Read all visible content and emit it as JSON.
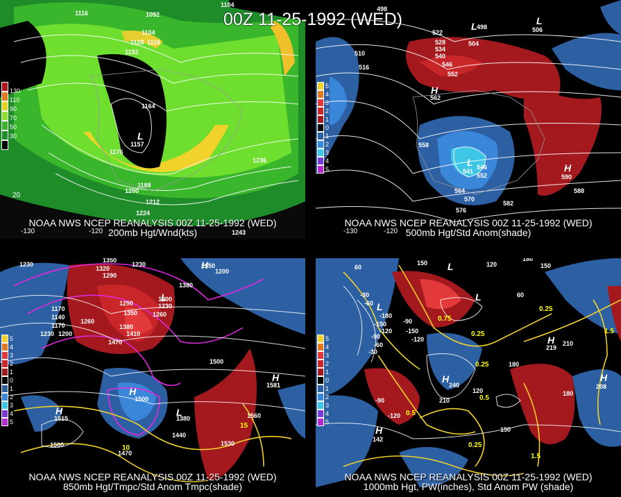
{
  "main_title": "00Z 11-25-1992 (WED)",
  "panels": [
    {
      "caption_line1": "NOAA NWS NCEP REANALYSIS 00Z 11-25-1992 (WED)",
      "caption_line2": "200mb Hgt/Wnd(kts)",
      "lon_labels": [
        "-130",
        "-120"
      ],
      "lat_labels": [
        "20"
      ],
      "legend": [
        "130",
        "110",
        "90",
        "70",
        "50",
        "30"
      ],
      "contour_labels": [
        "1116",
        "1092",
        "1104",
        "1104",
        "1128",
        "1116",
        "1152",
        "1164",
        "1157",
        "1176",
        "1188",
        "1200",
        "1212",
        "1224",
        "1236",
        "1243"
      ],
      "pressure_centers": [
        "L"
      ]
    },
    {
      "caption_line1": "NOAA NWS NCEP REANALYSIS 00Z 11-25-1992 (WED)",
      "caption_line2": "500mb Hgt/Std Anom(shade)",
      "lon_labels": [
        "-130",
        "-120"
      ],
      "lat_labels": [],
      "legend": [
        "5",
        "4",
        "3",
        "2",
        "1",
        "0",
        "1",
        "2",
        "3",
        "4",
        "5"
      ],
      "contour_labels": [
        "498",
        "510",
        "516",
        "522",
        "528",
        "534",
        "540",
        "546",
        "552",
        "504",
        "498",
        "506",
        "562",
        "558",
        "546",
        "552",
        "564",
        "570",
        "576",
        "582",
        "588",
        "590",
        "541"
      ],
      "pressure_centers": [
        "L",
        "L",
        "H",
        "L",
        "H"
      ]
    },
    {
      "caption_line1": "NOAA NWS NCEP REANALYSIS 00Z 11-25-1992 (WED)",
      "caption_line2": "850mb Hgt/Tmpc/Std Anom Tmpc(shade)",
      "lon_labels": [],
      "lat_labels": [],
      "legend": [
        "5",
        "4",
        "3",
        "2",
        "1",
        "0",
        "1",
        "2",
        "3",
        "4",
        "5"
      ],
      "contour_labels": [
        "1350",
        "1230",
        "1320",
        "1290",
        "1230",
        "1350",
        "1200",
        "1170",
        "1140",
        "1170",
        "1230",
        "1200",
        "1260",
        "1290",
        "1350",
        "1380",
        "1410",
        "1470",
        "1200",
        "1230",
        "1260",
        "1380",
        "1500",
        "1500",
        "1560",
        "1530",
        "1470",
        "1500",
        "1440",
        "1380",
        "1515",
        "1581",
        "15",
        "10"
      ],
      "pressure_centers": [
        "H",
        "H",
        "H",
        "H",
        "L",
        "L"
      ]
    },
    {
      "caption_line1": "NOAA NWS NCEP REANALYSIS 00Z 11-25-1992 (WED)",
      "caption_line2": "1000mb Hgt, PW(inches), Std Anom PW (shade)",
      "lon_labels": [],
      "lat_labels": [],
      "legend": [
        "5",
        "4",
        "3",
        "2",
        "1",
        "0",
        "1",
        "2",
        "3",
        "4",
        "5"
      ],
      "contour_labels": [
        "60",
        "150",
        "120",
        "180",
        "150",
        "-30",
        "-60",
        "-90",
        "-120",
        "-150",
        "-180",
        "-150",
        "-120",
        "-90",
        "-60",
        "-30",
        "0.75",
        "0.25",
        "0.25",
        "0.5",
        "0.25",
        "0.5",
        "1.5",
        "1.5",
        "0.25",
        "180",
        "210",
        "240",
        "210",
        "-90",
        "-120",
        "120",
        "142",
        "180",
        "150",
        "208",
        "219",
        "60"
      ],
      "pressure_centers": [
        "L",
        "L",
        "L",
        "H",
        "H",
        "H",
        "H"
      ]
    }
  ]
}
